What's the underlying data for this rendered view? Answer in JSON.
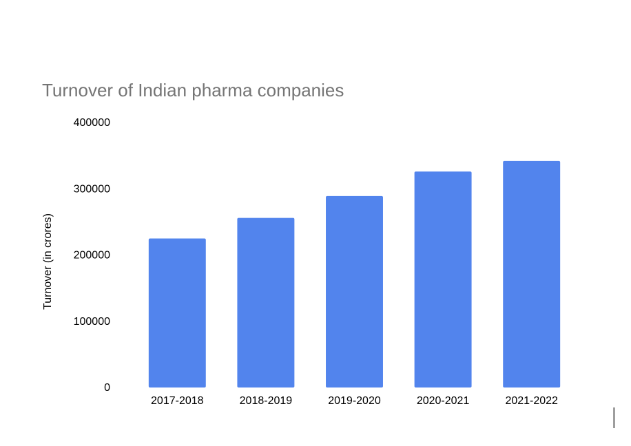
{
  "chart_data": {
    "type": "bar",
    "title": "Turnover of Indian pharma companies",
    "xlabel": "",
    "ylabel": "Turnover (in crores)",
    "categories": [
      "2017-2018",
      "2018-2019",
      "2019-2020",
      "2020-2021",
      "2021-2022"
    ],
    "values": [
      225000,
      256000,
      289000,
      326000,
      342000
    ],
    "ylim": [
      0,
      400000
    ],
    "yticks": [
      "0",
      "100000",
      "200000",
      "300000",
      "400000"
    ],
    "grid": false,
    "legend": "none",
    "bar_color": "#5284ed"
  }
}
